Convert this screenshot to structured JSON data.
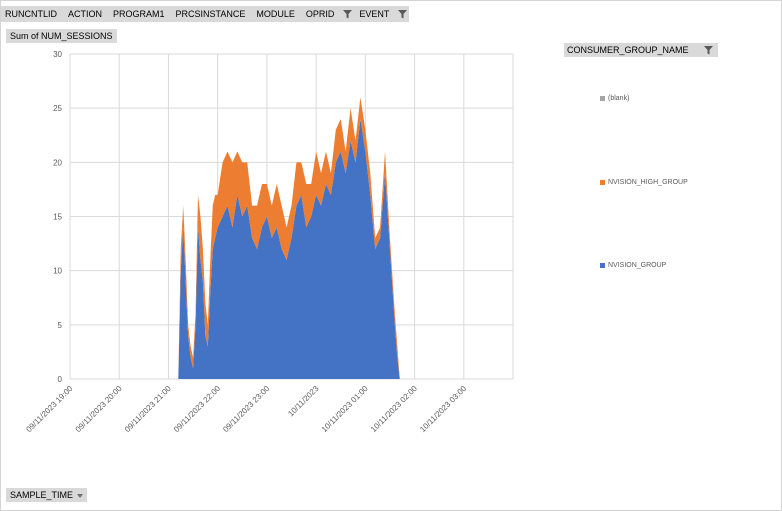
{
  "filters": {
    "fields": [
      "RUNCNTLID",
      "ACTION",
      "PROGRAM1",
      "PRCSINSTANCE",
      "MODULE",
      "OPRID",
      "EVENT"
    ],
    "values_button": "Sum of NUM_SESSIONS",
    "axis_button": "SAMPLE_TIME",
    "legend_header": "CONSUMER_GROUP_NAME"
  },
  "chart_data": {
    "type": "area",
    "stacked": true,
    "ylim": [
      0,
      30
    ],
    "yticks": [
      0,
      5,
      10,
      15,
      20,
      25,
      30
    ],
    "x_ticks": [
      "09/11/2023 19:00",
      "09/11/2023 20:00",
      "09/11/2023 21:00",
      "09/11/2023 22:00",
      "09/11/2023 23:00",
      "10/11/2023",
      "10/11/2023 01:00",
      "10/11/2023 02:00",
      "10/11/2023 03:00"
    ],
    "xlim_hours": [
      19,
      28
    ],
    "grid": true,
    "legend_position": "right",
    "x": [
      21.2,
      21.25,
      21.3,
      21.35,
      21.4,
      21.45,
      21.5,
      21.55,
      21.6,
      21.65,
      21.7,
      21.75,
      21.8,
      21.85,
      21.9,
      21.95,
      22.0,
      22.1,
      22.2,
      22.3,
      22.4,
      22.5,
      22.6,
      22.7,
      22.8,
      22.9,
      23.0,
      23.1,
      23.2,
      23.3,
      23.4,
      23.5,
      23.6,
      23.7,
      23.8,
      23.9,
      24.0,
      24.1,
      24.2,
      24.3,
      24.4,
      24.5,
      24.6,
      24.7,
      24.8,
      24.9,
      25.0,
      25.1,
      25.2,
      25.3,
      25.4,
      25.5,
      25.6,
      25.65,
      25.7
    ],
    "series": [
      {
        "name": "NVISION_GROUP",
        "color": "#4472c4",
        "values": [
          0,
          10,
          14,
          9,
          4,
          2,
          1,
          5,
          14,
          11,
          9,
          4,
          3,
          8,
          12,
          13,
          14,
          15,
          16,
          14,
          17,
          15,
          16,
          13,
          12,
          14,
          15,
          13,
          14,
          12,
          11,
          13,
          16,
          17,
          14,
          15,
          17,
          16,
          18,
          17,
          20,
          21,
          19,
          22,
          20,
          24,
          21,
          17,
          12,
          13,
          19,
          12,
          5,
          2,
          0
        ]
      },
      {
        "name": "NVISION_HIGH_GROUP",
        "color": "#ed7d31",
        "values": [
          0,
          2,
          2,
          2,
          1,
          1,
          1,
          1,
          3,
          4,
          3,
          3,
          2,
          3,
          4,
          4,
          3,
          5,
          5,
          6,
          4,
          5,
          4,
          3,
          4,
          4,
          3,
          3,
          4,
          4,
          3,
          3,
          4,
          3,
          4,
          3,
          4,
          3,
          3,
          2,
          3,
          3,
          2,
          3,
          2,
          2,
          2,
          2,
          1,
          1,
          2,
          1,
          1,
          1,
          0
        ]
      },
      {
        "name": "(blank)",
        "color": "#a5a5a5",
        "values": [
          0,
          0,
          0,
          0,
          0,
          0,
          0,
          0,
          0,
          0,
          0,
          0,
          0,
          0,
          0,
          0,
          0,
          0,
          0,
          0,
          0,
          0,
          0,
          0,
          0,
          0,
          0,
          0,
          0,
          0,
          0,
          0,
          0,
          0,
          0,
          0,
          0,
          0,
          0,
          0,
          0,
          0,
          0,
          0,
          0,
          0,
          0,
          0,
          0,
          0,
          0,
          0,
          0,
          0,
          0
        ]
      }
    ],
    "legend_order": [
      "(blank)",
      "NVISION_HIGH_GROUP",
      "NVISION_GROUP"
    ]
  }
}
